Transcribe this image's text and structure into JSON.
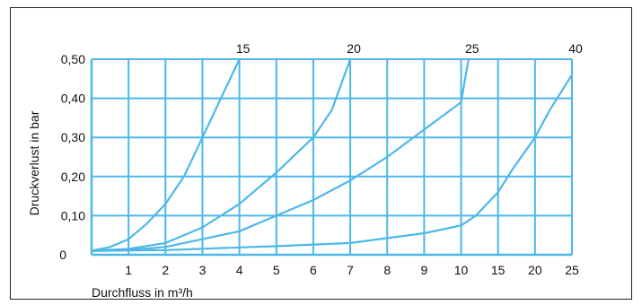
{
  "chart_data": {
    "type": "line",
    "xlabel": "Durchfluss in m³/h",
    "ylabel": "Druckverlust in bar",
    "x_tick_labels": [
      "1",
      "2",
      "3",
      "4",
      "5",
      "6",
      "7",
      "8",
      "9",
      "10",
      "15",
      "20",
      "25"
    ],
    "y_tick_labels": [
      "0",
      "0,10",
      "0,20",
      "0,30",
      "0,40",
      "0,50"
    ],
    "ylim": [
      0,
      0.5
    ],
    "grid": true,
    "series": [
      {
        "name": "15",
        "x": [
          0,
          0.5,
          1,
          1.5,
          2,
          2.5,
          3,
          3.5,
          4
        ],
        "y": [
          0.01,
          0.02,
          0.04,
          0.08,
          0.13,
          0.2,
          0.3,
          0.4,
          0.5
        ]
      },
      {
        "name": "20",
        "x": [
          0,
          1,
          2,
          3,
          4,
          5,
          6,
          6.5,
          7
        ],
        "y": [
          0.01,
          0.015,
          0.03,
          0.07,
          0.13,
          0.21,
          0.3,
          0.37,
          0.5
        ]
      },
      {
        "name": "25",
        "x": [
          0,
          1,
          2,
          3,
          4,
          5,
          6,
          7,
          8,
          9,
          10,
          11
        ],
        "y": [
          0.01,
          0.012,
          0.02,
          0.04,
          0.06,
          0.1,
          0.14,
          0.19,
          0.25,
          0.32,
          0.39,
          0.5
        ]
      },
      {
        "name": "40",
        "x": [
          0,
          2,
          5,
          7,
          9,
          10,
          12,
          15,
          17,
          20,
          22,
          25
        ],
        "y": [
          0.01,
          0.012,
          0.022,
          0.03,
          0.055,
          0.075,
          0.1,
          0.16,
          0.22,
          0.3,
          0.37,
          0.46
        ]
      }
    ],
    "colors": {
      "grid": "#4db8e8",
      "line": "#4db8e8",
      "text": "#111111",
      "frame": "#222222"
    }
  }
}
